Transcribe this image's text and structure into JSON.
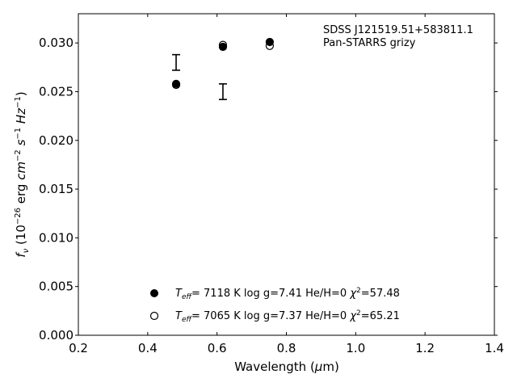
{
  "chart_data": {
    "type": "scatter",
    "annotation_lines": [
      "SDSS J121519.51+583811.1",
      "Pan-STARRS grizy"
    ],
    "xlabel": "Wavelength (μm)",
    "ylabel": "f_ν (10^-26 erg cm^-2 s^-1 Hz^-1)",
    "xlim": [
      0.2,
      1.4
    ],
    "ylim": [
      0.0,
      0.033
    ],
    "x_ticks": [
      "0.2",
      "0.4",
      "0.6",
      "0.8",
      "1.0",
      "1.2",
      "1.4"
    ],
    "y_ticks": [
      "0.000",
      "0.005",
      "0.010",
      "0.015",
      "0.020",
      "0.025",
      "0.030"
    ],
    "grid": false,
    "legend_position": "bottom-center",
    "observed": {
      "x": [
        0.482,
        0.617
      ],
      "y": [
        0.028,
        0.025
      ],
      "err": [
        0.0008,
        0.0008
      ]
    },
    "series": [
      {
        "name": "T_eff= 7118 K log g=7.41 He/H=0 χ²=57.48",
        "marker": "filled-circle",
        "color": "#000000",
        "x": [
          0.482,
          0.617,
          0.752
        ],
        "y": [
          0.0258,
          0.0296,
          0.0301
        ]
      },
      {
        "name": "T_eff= 7065 K log g=7.37 He/H=0 χ²=65.21",
        "marker": "open-circle",
        "color": "#000000",
        "x": [
          0.482,
          0.617,
          0.752
        ],
        "y": [
          0.0257,
          0.0298,
          0.0297
        ]
      }
    ],
    "legend": [
      {
        "teff": "7118 K",
        "logg": "log g=7.41",
        "hehe": "He/H=0",
        "chi": "=57.48"
      },
      {
        "teff": "7065 K",
        "logg": "log g=7.37",
        "hehe": "He/H=0",
        "chi": "=65.21"
      }
    ]
  }
}
